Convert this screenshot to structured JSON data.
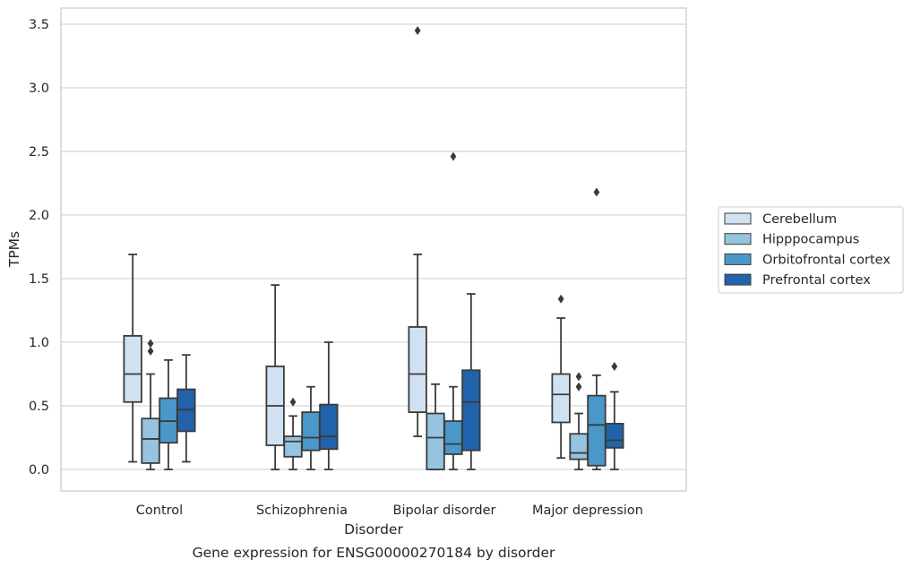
{
  "chart_data": {
    "type": "boxplot",
    "categories": [
      "Control",
      "Schizophrenia",
      "Bipolar disorder",
      "Major depression"
    ],
    "series": [
      {
        "name": "Cerebellum",
        "color": "#d0e1f2",
        "boxes": [
          {
            "whislo": 0.06,
            "q1": 0.53,
            "med": 0.75,
            "q3": 1.05,
            "whishi": 1.69,
            "fliers": []
          },
          {
            "whislo": 0.0,
            "q1": 0.19,
            "med": 0.5,
            "q3": 0.81,
            "whishi": 1.45,
            "fliers": []
          },
          {
            "whislo": 0.26,
            "q1": 0.45,
            "med": 0.75,
            "q3": 1.12,
            "whishi": 1.69,
            "fliers": [
              3.45
            ]
          },
          {
            "whislo": 0.09,
            "q1": 0.37,
            "med": 0.59,
            "q3": 0.75,
            "whishi": 1.19,
            "fliers": [
              1.34
            ]
          }
        ]
      },
      {
        "name": "Hipppocampus",
        "color": "#94c4df",
        "boxes": [
          {
            "whislo": 0.0,
            "q1": 0.05,
            "med": 0.24,
            "q3": 0.4,
            "whishi": 0.75,
            "fliers": [
              0.93,
              0.99
            ]
          },
          {
            "whislo": 0.0,
            "q1": 0.1,
            "med": 0.22,
            "q3": 0.26,
            "whishi": 0.42,
            "fliers": [
              0.53
            ]
          },
          {
            "whislo": 0.0,
            "q1": 0.0,
            "med": 0.25,
            "q3": 0.44,
            "whishi": 0.67,
            "fliers": []
          },
          {
            "whislo": 0.0,
            "q1": 0.08,
            "med": 0.13,
            "q3": 0.28,
            "whishi": 0.44,
            "fliers": [
              0.65,
              0.73
            ]
          }
        ]
      },
      {
        "name": "Orbitofrontal cortex",
        "color": "#4a98c9",
        "boxes": [
          {
            "whislo": 0.0,
            "q1": 0.21,
            "med": 0.38,
            "q3": 0.56,
            "whishi": 0.86,
            "fliers": []
          },
          {
            "whislo": 0.0,
            "q1": 0.15,
            "med": 0.25,
            "q3": 0.45,
            "whishi": 0.65,
            "fliers": []
          },
          {
            "whislo": 0.0,
            "q1": 0.12,
            "med": 0.2,
            "q3": 0.38,
            "whishi": 0.65,
            "fliers": [
              2.46
            ]
          },
          {
            "whislo": 0.0,
            "q1": 0.03,
            "med": 0.35,
            "q3": 0.58,
            "whishi": 0.74,
            "fliers": [
              2.18
            ]
          }
        ]
      },
      {
        "name": "Prefrontal cortex",
        "color": "#2163aa",
        "boxes": [
          {
            "whislo": 0.06,
            "q1": 0.3,
            "med": 0.47,
            "q3": 0.63,
            "whishi": 0.9,
            "fliers": []
          },
          {
            "whislo": 0.0,
            "q1": 0.16,
            "med": 0.26,
            "q3": 0.51,
            "whishi": 1.0,
            "fliers": []
          },
          {
            "whislo": 0.0,
            "q1": 0.15,
            "med": 0.53,
            "q3": 0.78,
            "whishi": 1.38,
            "fliers": []
          },
          {
            "whislo": 0.0,
            "q1": 0.17,
            "med": 0.23,
            "q3": 0.36,
            "whishi": 0.61,
            "fliers": [
              0.81
            ]
          }
        ]
      }
    ],
    "yticks": [
      "0.0",
      "0.5",
      "1.0",
      "1.5",
      "2.0",
      "2.5",
      "3.0",
      "3.5"
    ],
    "ylim": [
      -0.17,
      3.63
    ],
    "xlabel": "Disorder",
    "ylabel": "TPMs",
    "caption": "Gene expression for ENSG00000270184 by disorder",
    "legend_placement": "right",
    "grid": "horizontal",
    "colors": {
      "grid": "#cccccc",
      "axes_edge": "#cccccc",
      "line": "#3b3b3b",
      "text": "#262626"
    }
  }
}
